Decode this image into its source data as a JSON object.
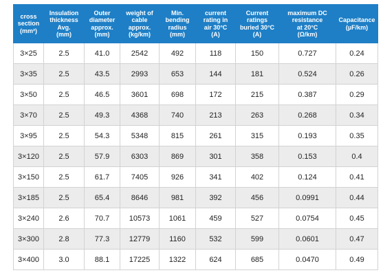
{
  "table": {
    "headers": [
      [
        "cross",
        "section",
        "(mm²)"
      ],
      [
        "Insulation",
        "thickness",
        "Avg.",
        "(mm)"
      ],
      [
        "Outer",
        "diameter",
        "approx.",
        "(mm)"
      ],
      [
        "weight of",
        "cable",
        "approx.",
        "(kg/km)"
      ],
      [
        "Min.",
        "bending",
        "radius",
        "(mm)"
      ],
      [
        "current",
        "rating in",
        "air 30°C",
        "(A)"
      ],
      [
        "Current",
        "ratings",
        "buried 30°C",
        "(A)"
      ],
      [
        "maximum DC",
        "resistance",
        "at 20°C",
        "(Ω/km)"
      ],
      [
        "Capacitance",
        "(µF/km)"
      ]
    ],
    "rows": [
      [
        "3×25",
        "2.5",
        "41.0",
        "2542",
        "492",
        "118",
        "150",
        "0.727",
        "0.24"
      ],
      [
        "3×35",
        "2.5",
        "43.5",
        "2993",
        "653",
        "144",
        "181",
        "0.524",
        "0.26"
      ],
      [
        "3×50",
        "2.5",
        "46.5",
        "3601",
        "698",
        "172",
        "215",
        "0.387",
        "0.29"
      ],
      [
        "3×70",
        "2.5",
        "49.3",
        "4368",
        "740",
        "213",
        "263",
        "0.268",
        "0.34"
      ],
      [
        "3×95",
        "2.5",
        "54.3",
        "5348",
        "815",
        "261",
        "315",
        "0.193",
        "0.35"
      ],
      [
        "3×120",
        "2.5",
        "57.9",
        "6303",
        "869",
        "301",
        "358",
        "0.153",
        "0.4"
      ],
      [
        "3×150",
        "2.5",
        "61.7",
        "7405",
        "926",
        "341",
        "402",
        "0.124",
        "0.41"
      ],
      [
        "3×185",
        "2.5",
        "65.4",
        "8646",
        "981",
        "392",
        "456",
        "0.0991",
        "0.44"
      ],
      [
        "3×240",
        "2.6",
        "70.7",
        "10573",
        "1061",
        "459",
        "527",
        "0.0754",
        "0.45"
      ],
      [
        "3×300",
        "2.8",
        "77.3",
        "12779",
        "1160",
        "532",
        "599",
        "0.0601",
        "0.47"
      ],
      [
        "3×400",
        "3.0",
        "88.1",
        "17225",
        "1322",
        "624",
        "685",
        "0.0470",
        "0.49"
      ]
    ],
    "colors": {
      "header_bg": "#1e7fc6",
      "header_text": "#ffffff",
      "alt_row_bg": "#ececec",
      "border": "#d2d2d2"
    }
  }
}
